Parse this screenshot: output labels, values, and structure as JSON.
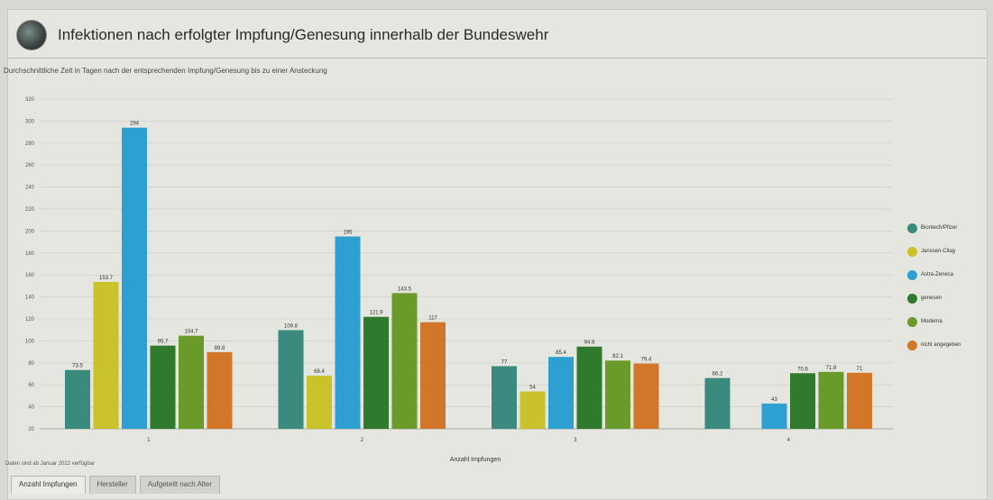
{
  "header": {
    "title": "Infektionen nach erfolgter Impfung/Genesung innerhalb der Bundeswehr"
  },
  "footnote": "Daten sind ab Januar 2022 verfügbar",
  "tabs": [
    {
      "label": "Anzahl Impfungen",
      "active": true
    },
    {
      "label": "Hersteller",
      "active": false
    },
    {
      "label": "Aufgeteilt nach Alter",
      "active": false
    }
  ],
  "chart_data": {
    "type": "bar",
    "title": "Durchschnittliche Zeit in Tagen nach der entsprechenden Impfung/Genesung bis zu einer Ansteckung",
    "xlabel": "Anzahl Impfungen",
    "ylabel": "",
    "ylim": [
      20,
      320
    ],
    "yticks": [
      20,
      40,
      60,
      80,
      100,
      120,
      140,
      160,
      180,
      200,
      220,
      240,
      260,
      280,
      300,
      320
    ],
    "categories": [
      "1",
      "2",
      "3",
      "4"
    ],
    "grid": true,
    "legend_position": "right",
    "series": [
      {
        "name": "Biontech/Pfizer",
        "color": "#3a8a7e",
        "values": [
          73.5,
          109.8,
          77,
          66.2
        ]
      },
      {
        "name": "Janssen-Cilag",
        "color": "#c9c22a",
        "values": [
          153.7,
          68.4,
          54,
          null
        ]
      },
      {
        "name": "Astra-Zeneca",
        "color": "#2e9fd1",
        "values": [
          294,
          195,
          85.4,
          43
        ]
      },
      {
        "name": "genesen",
        "color": "#2f7a2c",
        "values": [
          95.7,
          121.9,
          94.8,
          70.6
        ]
      },
      {
        "name": "Moderna",
        "color": "#6a9a2a",
        "values": [
          104.7,
          143.5,
          82.1,
          71.8
        ]
      },
      {
        "name": "nicht angegeben",
        "color": "#d2762a",
        "values": [
          89.8,
          117,
          79.4,
          71
        ]
      }
    ]
  }
}
